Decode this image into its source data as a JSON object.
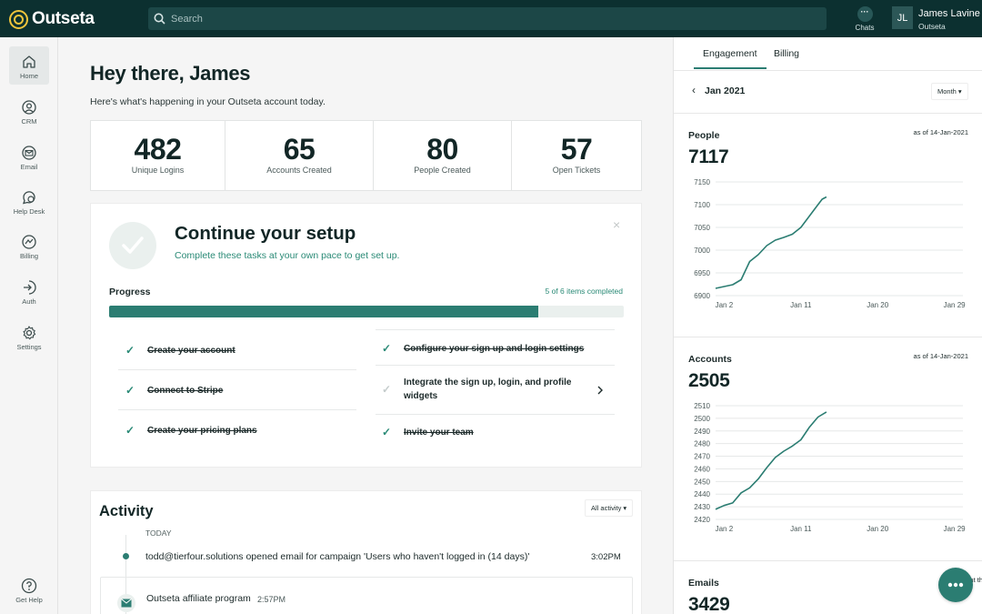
{
  "brand": {
    "name": "Outseta",
    "accent": "#2b7d72",
    "topbar_bg": "#0c3030",
    "logo_color": "#f0c53c"
  },
  "search": {
    "placeholder": "Search"
  },
  "chats": {
    "label": "Chats",
    "icon": "ellipsis-icon"
  },
  "user": {
    "initials": "JL",
    "name": "James Lavine",
    "org": "Outseta"
  },
  "sidebar": {
    "items": [
      {
        "label": "Home",
        "icon": "home-icon"
      },
      {
        "label": "CRM",
        "icon": "crm-icon"
      },
      {
        "label": "Email",
        "icon": "email-icon"
      },
      {
        "label": "Help Desk",
        "icon": "help-desk-icon"
      },
      {
        "label": "Billing",
        "icon": "billing-icon"
      },
      {
        "label": "Auth",
        "icon": "auth-icon"
      },
      {
        "label": "Settings",
        "icon": "settings-icon"
      }
    ],
    "get_help": "Get Help"
  },
  "main": {
    "greeting": "Hey there, James",
    "subtitle": "Here's what's happening in your Outseta account today.",
    "stats": [
      {
        "value": "482",
        "label": "Unique Logins"
      },
      {
        "value": "65",
        "label": "Accounts Created"
      },
      {
        "value": "80",
        "label": "People Created"
      },
      {
        "value": "57",
        "label": "Open Tickets"
      }
    ],
    "setup": {
      "title": "Continue your setup",
      "subtitle": "Complete these tasks at your own pace to get set up.",
      "close": "×",
      "progress_label": "Progress",
      "progress_count": "5 of 6 items completed",
      "progress_fraction": 0.8333,
      "tasks": [
        {
          "label": "Create your account",
          "done": true
        },
        {
          "label": "Connect to Stripe",
          "done": true
        },
        {
          "label": "Create your pricing plans",
          "done": true
        },
        {
          "label": "Configure your sign up and login settings",
          "done": true
        },
        {
          "label": "Integrate the sign up, login, and profile widgets",
          "done": false
        },
        {
          "label": "Invite your team",
          "done": true
        }
      ]
    },
    "activity": {
      "title": "Activity",
      "filter": "All activity ▾",
      "day": "TODAY",
      "event_text": "todd@tierfour.solutions opened email for campaign 'Users who haven't logged in (14 days)'",
      "event_time": "3:02PM",
      "card_text": "Outseta affiliate program",
      "card_time": "2:57PM"
    }
  },
  "right": {
    "tabs": [
      "Engagement",
      "Billing"
    ],
    "month": "Jan 2021",
    "period_select": "Month ▾",
    "charts": [
      {
        "title": "People",
        "asof": "as of 14-Jan-2021",
        "total": "7117"
      },
      {
        "title": "Accounts",
        "asof": "as of 14-Jan-2021",
        "total": "2505"
      },
      {
        "title": "Emails",
        "asof": "emails sent th",
        "total": "3429"
      }
    ]
  },
  "chart_data": [
    {
      "type": "line",
      "title": "People",
      "x_ticks": [
        "Jan 2",
        "Jan 11",
        "Jan 20",
        "Jan 29"
      ],
      "y_ticks": [
        "6900",
        "6950",
        "7000",
        "7050",
        "7100",
        "7150"
      ],
      "ylim": [
        6900,
        7150
      ],
      "xlim": [
        1,
        30
      ],
      "grid": true,
      "color": "#2b7d72",
      "points": [
        [
          1,
          6916
        ],
        [
          2,
          6920
        ],
        [
          3,
          6924
        ],
        [
          4,
          6935
        ],
        [
          5,
          6975
        ],
        [
          6,
          6990
        ],
        [
          7,
          7010
        ],
        [
          8,
          7022
        ],
        [
          9,
          7028
        ],
        [
          10,
          7035
        ],
        [
          11,
          7050
        ],
        [
          12,
          7075
        ],
        [
          13,
          7100
        ],
        [
          13.5,
          7112
        ],
        [
          14,
          7117
        ]
      ]
    },
    {
      "type": "line",
      "title": "Accounts",
      "x_ticks": [
        "Jan 2",
        "Jan 11",
        "Jan 20",
        "Jan 29"
      ],
      "y_ticks": [
        "2420",
        "2430",
        "2440",
        "2450",
        "2460",
        "2470",
        "2480",
        "2490",
        "2500",
        "2510"
      ],
      "ylim": [
        2420,
        2510
      ],
      "xlim": [
        1,
        30
      ],
      "grid": true,
      "color": "#2b7d72",
      "points": [
        [
          1,
          2428
        ],
        [
          2,
          2431
        ],
        [
          3,
          2433
        ],
        [
          4,
          2441
        ],
        [
          5,
          2445
        ],
        [
          6,
          2452
        ],
        [
          7,
          2461
        ],
        [
          8,
          2469
        ],
        [
          9,
          2474
        ],
        [
          10,
          2478
        ],
        [
          11,
          2483
        ],
        [
          12,
          2493
        ],
        [
          13,
          2501
        ],
        [
          14,
          2505
        ]
      ]
    }
  ]
}
